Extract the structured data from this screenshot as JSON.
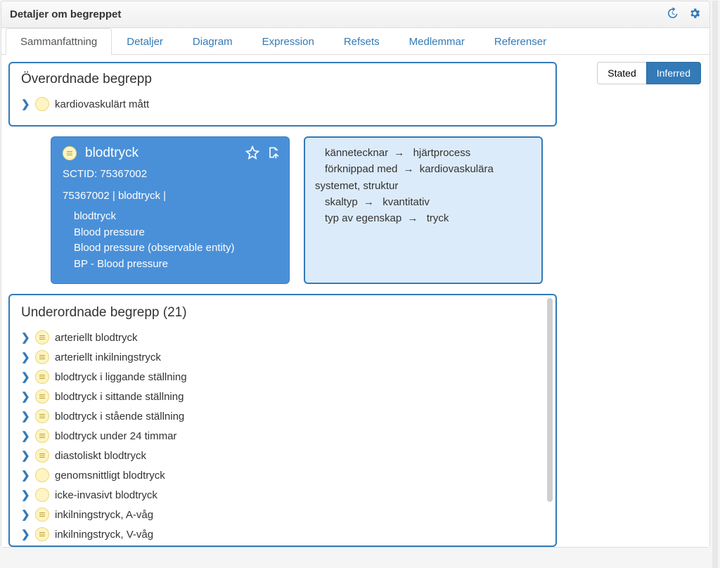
{
  "header": {
    "title": "Detaljer om begreppet"
  },
  "tabs": [
    {
      "label": "Sammanfattning",
      "active": true
    },
    {
      "label": "Detaljer"
    },
    {
      "label": "Diagram"
    },
    {
      "label": "Expression"
    },
    {
      "label": "Refsets"
    },
    {
      "label": "Medlemmar"
    },
    {
      "label": "Referenser"
    }
  ],
  "toggle": {
    "stated_label": "Stated",
    "inferred_label": "Inferred",
    "active": "inferred"
  },
  "parents": {
    "title": "Överordnade begrepp",
    "items": [
      {
        "label": "kardiovaskulärt mått",
        "has_children": true,
        "defined": false
      }
    ]
  },
  "concept": {
    "name": "blodtryck",
    "sctid_label": "SCTID:",
    "sctid": "75367002",
    "fsn_line": "75367002 | blodtryck |",
    "synonyms": [
      "blodtryck",
      "Blood pressure",
      "Blood pressure (observable entity)",
      "BP - Blood pressure"
    ]
  },
  "attributes": [
    {
      "name": "kännetecknar",
      "value": "hjärtprocess",
      "indent": true
    },
    {
      "name": "förknippad med",
      "value": "kardiovaskulära systemet, struktur",
      "indent": true,
      "wrap": true
    },
    {
      "name": "skaltyp",
      "value": "kvantitativ",
      "indent": true
    },
    {
      "name": "typ av egenskap",
      "value": "tryck",
      "indent": true
    }
  ],
  "children": {
    "title_prefix": "Underordnade begrepp",
    "count": 21,
    "items": [
      {
        "label": "arteriellt blodtryck",
        "defined": true
      },
      {
        "label": "arteriellt inkilningstryck",
        "defined": true
      },
      {
        "label": "blodtryck i liggande ställning",
        "defined": true
      },
      {
        "label": "blodtryck i sittande ställning",
        "defined": true
      },
      {
        "label": "blodtryck i stående ställning",
        "defined": true
      },
      {
        "label": "blodtryck under 24 timmar",
        "defined": true
      },
      {
        "label": "diastoliskt blodtryck",
        "defined": true
      },
      {
        "label": "genomsnittligt blodtryck",
        "defined": false
      },
      {
        "label": "icke-invasivt blodtryck",
        "defined": false
      },
      {
        "label": "inkilningstryck, A-våg",
        "defined": true
      },
      {
        "label": "inkilningstryck, V-våg",
        "defined": true
      }
    ]
  },
  "colors": {
    "primary": "#337ab7",
    "card_bg": "#4a90d9",
    "attr_bg": "#dcebfa",
    "icon_bg": "#fff4c2"
  }
}
